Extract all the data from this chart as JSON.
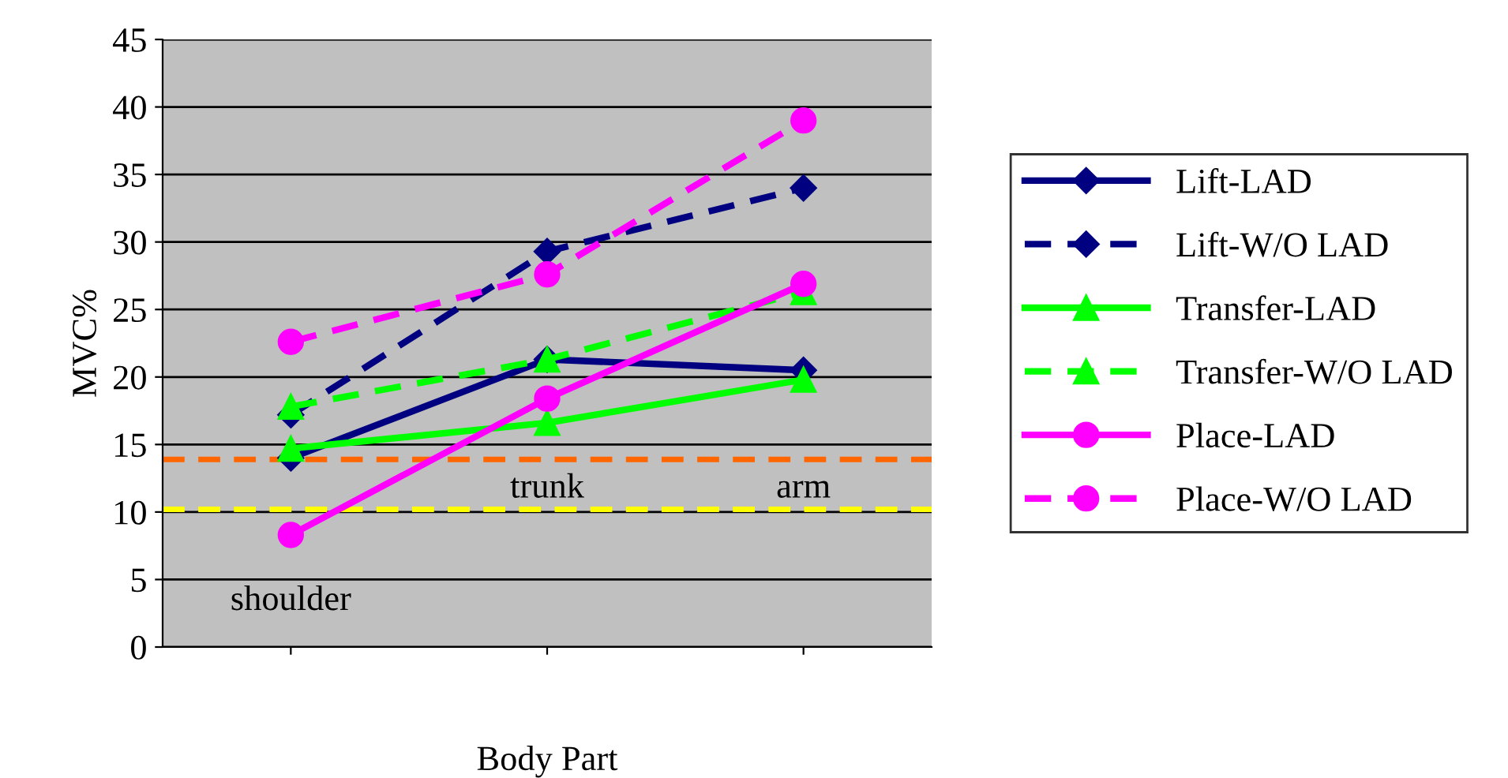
{
  "chart_data": {
    "type": "line",
    "xlabel": "Body Part",
    "ylabel": "MVC%",
    "categories": [
      null,
      null,
      null
    ],
    "ylim": [
      0,
      45
    ],
    "yticks": [
      0,
      5,
      10,
      15,
      20,
      25,
      30,
      35,
      40,
      45
    ],
    "grid": "y",
    "legend": "right",
    "series": [
      {
        "name": "Lift-LAD",
        "color": "#000080",
        "values": [
          14.0,
          21.3,
          20.5
        ],
        "marker": "diamond",
        "line_style": "solid"
      },
      {
        "name": "Lift-W/O LAD",
        "color": "#000080",
        "values": [
          17.2,
          29.3,
          34.0
        ],
        "marker": "diamond",
        "line_style": "dashed"
      },
      {
        "name": "Transfer-LAD",
        "color": "#00ff00",
        "values": [
          14.7,
          16.6,
          19.8
        ],
        "marker": "triangle",
        "line_style": "solid"
      },
      {
        "name": "Transfer-W/O LAD",
        "color": "#00ff00",
        "values": [
          17.8,
          21.3,
          26.3
        ],
        "marker": "triangle",
        "line_style": "dashed"
      },
      {
        "name": "Place-LAD",
        "color": "#ff00ff",
        "values": [
          8.3,
          18.4,
          26.9
        ],
        "marker": "circle",
        "line_style": "solid"
      },
      {
        "name": "Place-W/O LAD",
        "color": "#ff00ff",
        "values": [
          22.6,
          27.6,
          39.0
        ],
        "marker": "circle",
        "line_style": "dashed"
      }
    ],
    "ref_lines": [
      {
        "axis": "y",
        "value": 13.9,
        "color": "#ff6600",
        "line_style": "dashed"
      },
      {
        "axis": "y",
        "value": 10.2,
        "color": "#ffff00",
        "line_style": "dashed"
      }
    ],
    "annotations": [
      "shoulder",
      "trunk",
      "arm"
    ]
  }
}
